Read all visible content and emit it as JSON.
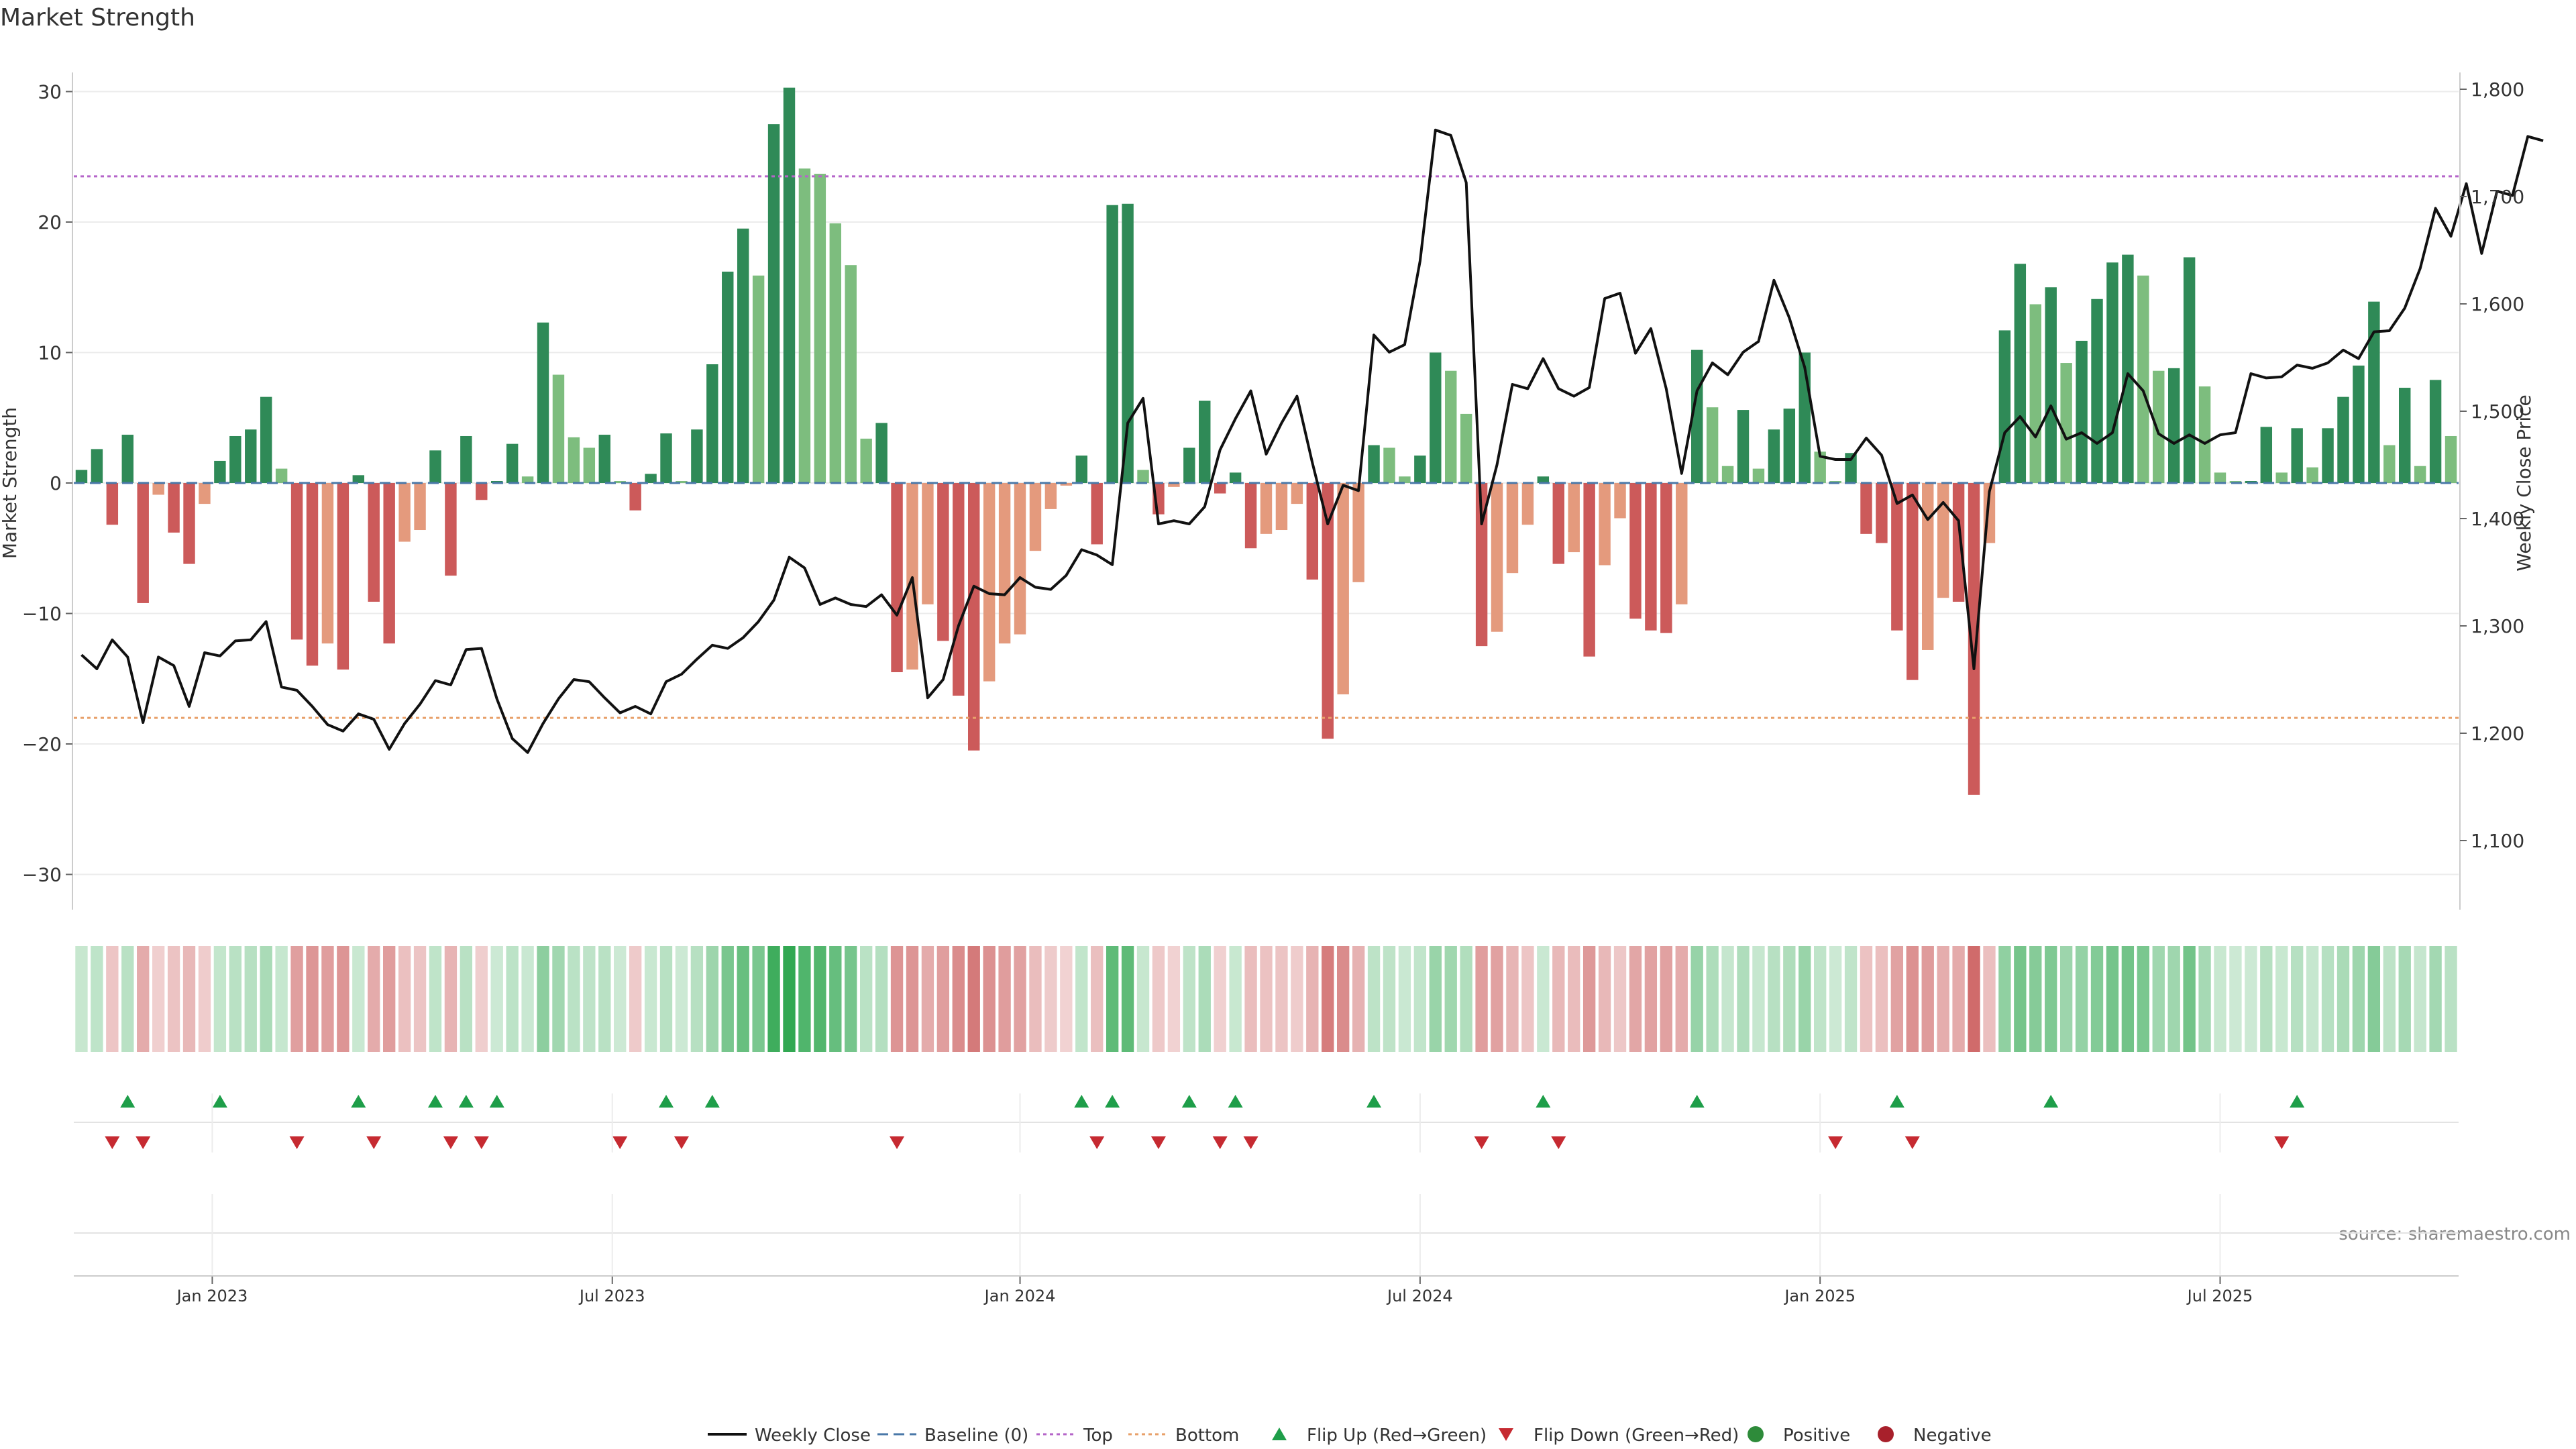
{
  "chart_data": {
    "type": "bar",
    "title": "Market Strength",
    "ylabel_left": "Market Strength",
    "ylabel_right": "Weekly Close Price",
    "ylim_left": [
      -33,
      33
    ],
    "ylim_right": [
      1035,
      1830
    ],
    "yticks_left": [
      30,
      20,
      10,
      0,
      -10,
      -20,
      -30
    ],
    "yticks_left_labels": [
      "30",
      "20",
      "10",
      "0",
      "−10",
      "−20",
      "−30"
    ],
    "yticks_right": [
      1800,
      1700,
      1600,
      1500,
      1400,
      1300,
      1200,
      1100
    ],
    "yticks_right_labels": [
      "1,800",
      "1,700",
      "1,600",
      "1,500",
      "1,400",
      "1,300",
      "1,200",
      "1,100"
    ],
    "x_ticks": [
      {
        "label": "Jan 2023",
        "week": 9
      },
      {
        "label": "Jul 2023",
        "week": 35
      },
      {
        "label": "Jan 2024",
        "week": 61.5
      },
      {
        "label": "Jul 2024",
        "week": 87.5
      },
      {
        "label": "Jan 2025",
        "week": 113.5
      },
      {
        "label": "Jul 2025",
        "week": 139.5
      }
    ],
    "top_line": 23.5,
    "bottom_line": -18,
    "series": [
      {
        "name": "Market Strength",
        "values": [
          1,
          2.6,
          -3.2,
          3.7,
          -9.2,
          -0.9,
          -3.8,
          -6.2,
          -1.6,
          1.7,
          3.6,
          4.1,
          6.6,
          1.1,
          -12,
          -14,
          -12.3,
          -14.3,
          0.6,
          -9.1,
          -12.3,
          -4.5,
          -3.6,
          2.5,
          -7.1,
          3.6,
          -1.3,
          0,
          3,
          0.5,
          12.3,
          8.3,
          3.5,
          2.7,
          3.7,
          0,
          -2.1,
          0.7,
          3.8,
          0,
          4.1,
          9.1,
          16.2,
          19.5,
          15.9,
          27.5,
          30.3,
          24.1,
          23.7,
          19.9,
          16.7,
          3.4,
          4.6,
          -14.5,
          -14.3,
          -9.3,
          -12.1,
          -16.3,
          -20.5,
          -15.2,
          -12.3,
          -11.6,
          -5.2,
          -2,
          -0.2,
          2.1,
          -4.7,
          21.3,
          21.4,
          1,
          -2.4,
          -0.3,
          2.7,
          6.3,
          -0.8,
          0.8,
          -5,
          -3.9,
          -3.6,
          -1.6,
          -7.4,
          -19.6,
          -16.2,
          -7.6,
          2.9,
          2.7,
          0.5,
          2.1,
          10,
          8.6,
          5.3,
          -12.5,
          -11.4,
          -6.9,
          -3.2,
          0.5,
          -6.2,
          -5.3,
          -13.3,
          -6.3,
          -2.7,
          -10.4,
          -11.3,
          -11.5,
          -9.3,
          10.2,
          5.8,
          1.3,
          5.6,
          1.1,
          4.1,
          5.7,
          10,
          2.4,
          0,
          2.3,
          -3.9,
          -4.6,
          -11.3,
          -15.1,
          -12.8,
          -8.8,
          -9.1,
          -23.9,
          -4.6,
          11.7,
          16.8,
          13.7,
          15,
          9.2,
          10.9,
          14.1,
          16.9,
          17.5,
          15.9,
          8.6,
          8.8,
          17.3,
          7.4,
          0.8,
          0,
          0,
          4.3,
          0.8,
          4.2,
          1.2,
          4.2,
          6.6,
          9,
          13.9,
          2.9,
          7.3,
          1.3,
          7.9,
          3.6
        ]
      },
      {
        "name": "Weekly Close",
        "values": [
          1273,
          1260,
          1287,
          1271,
          1210,
          1271,
          1263,
          1225,
          1275,
          1272,
          1286,
          1287,
          1304,
          1243,
          1240,
          1225,
          1208,
          1202,
          1218,
          1213,
          1185,
          1209,
          1227,
          1249,
          1245,
          1278,
          1279,
          1232,
          1195,
          1182,
          1209,
          1232,
          1250,
          1248,
          1233,
          1219,
          1225,
          1218,
          1248,
          1255,
          1269,
          1282,
          1279,
          1289,
          1304,
          1324,
          1364,
          1354,
          1320,
          1326,
          1320,
          1318,
          1329,
          1310,
          1345,
          1233,
          1250,
          1300,
          1337,
          1330,
          1329,
          1345,
          1336,
          1334,
          1347,
          1371,
          1366,
          1357,
          1489,
          1512,
          1395,
          1398,
          1395,
          1411,
          1464,
          1493,
          1519,
          1460,
          1489,
          1514,
          1452,
          1395,
          1431,
          1426,
          1571,
          1555,
          1562,
          1640,
          1762,
          1757,
          1713,
          1395,
          1450,
          1525,
          1521,
          1549,
          1521,
          1514,
          1522,
          1605,
          1610,
          1554,
          1577,
          1521,
          1442,
          1519,
          1545,
          1534,
          1555,
          1565,
          1622,
          1587,
          1541,
          1458,
          1455,
          1455,
          1475,
          1459,
          1414,
          1422,
          1399,
          1415,
          1398,
          1260,
          1425,
          1480,
          1495,
          1476,
          1505,
          1474,
          1480,
          1470,
          1480,
          1535,
          1519,
          1479,
          1470,
          1478,
          1470,
          1478,
          1480,
          1535,
          1531,
          1532,
          1543,
          1540,
          1545,
          1557,
          1549,
          1574,
          1575,
          1596,
          1633,
          1689,
          1663,
          1712,
          1647,
          1705,
          1701,
          1756,
          1752
        ]
      }
    ],
    "flip_up_weeks": [
      3,
      9,
      18,
      23,
      25,
      27,
      38,
      41,
      65,
      67,
      72,
      75,
      84,
      95,
      105,
      118,
      128,
      144
    ],
    "flip_down_weeks": [
      2,
      4,
      14,
      19,
      24,
      26,
      35,
      39,
      53,
      66,
      70,
      74,
      76,
      91,
      96,
      114,
      119,
      143
    ],
    "legend": [
      {
        "label": "Weekly Close",
        "color": "#111111"
      },
      {
        "label": "Baseline (0)",
        "color": "#4a78a8"
      },
      {
        "label": "Top",
        "color": "#b565c9"
      },
      {
        "label": "Bottom",
        "color": "#e8a06a"
      },
      {
        "label": "Flip Up (Red→Green)",
        "color": "#1e9e49"
      },
      {
        "label": "Flip Down (Green→Red)",
        "color": "#c62a31"
      },
      {
        "label": "Positive",
        "color": "#2e8b3a"
      },
      {
        "label": "Negative",
        "color": "#a8202b"
      }
    ],
    "colors": {
      "green_strong": "#2f8a57",
      "green_light": "#7dbd7e",
      "red_strong": "#cc5a5a",
      "red_light": "#e49a7d",
      "top_line": "#b565c9",
      "bottom_line": "#e8a06a"
    },
    "source": "source: sharemaestro.com"
  }
}
